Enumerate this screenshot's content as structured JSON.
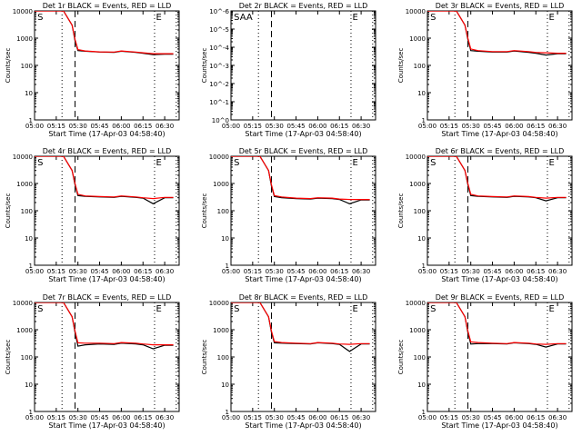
{
  "figure": {
    "xlabel": "Start Time (17-Apr-03 04:58:40)",
    "ylabel": "Counts/sec"
  },
  "chart_data": [
    {
      "type": "line",
      "title": "Det 1r BLACK = Events, RED = LLD",
      "xlabel": "Start Time (17-Apr-03 04:58:40)",
      "ylabel": "Counts/sec",
      "x_ticks": [
        "05:00",
        "05:15",
        "05:30",
        "05:45",
        "06:00",
        "06:15",
        "06:30"
      ],
      "y_scale": "log",
      "ylim": [
        1,
        10000
      ],
      "y_ticks": [
        "1",
        "10",
        "100",
        "1000",
        "10000"
      ],
      "xlim": [
        "05:00",
        "06:40"
      ],
      "dotted_markers": [
        "05:19",
        "06:23",
        "06:38"
      ],
      "dashed_markers": [
        "05:28"
      ],
      "labels": [
        {
          "text": "S",
          "time": "05:02"
        },
        {
          "text": "E",
          "time": "06:24"
        }
      ],
      "series": [
        {
          "name": "BLACK",
          "color": "#000000",
          "x": [
            "05:00",
            "05:20",
            "05:26",
            "05:28",
            "05:30",
            "05:35",
            "05:45",
            "05:55",
            "06:00",
            "06:10",
            "06:15",
            "06:22",
            "06:30",
            "06:36"
          ],
          "y": [
            10000,
            10000,
            3000,
            800,
            350,
            330,
            310,
            300,
            330,
            300,
            280,
            250,
            260,
            260
          ]
        },
        {
          "name": "RED",
          "color": "#ff0000",
          "x": [
            "05:00",
            "05:20",
            "05:26",
            "05:28",
            "05:30",
            "05:35",
            "05:45",
            "05:55",
            "06:00",
            "06:10",
            "06:15",
            "06:22",
            "06:30",
            "06:36"
          ],
          "y": [
            10000,
            10000,
            3000,
            900,
            380,
            340,
            315,
            310,
            340,
            310,
            290,
            270,
            270,
            270
          ]
        }
      ]
    },
    {
      "type": "line",
      "title": "Det 2r BLACK = Events, RED = LLD",
      "xlabel": "Start Time (17-Apr-03 04:58:40)",
      "ylabel": "Counts/sec",
      "x_ticks": [
        "05:00",
        "05:15",
        "05:30",
        "05:45",
        "06:00",
        "06:15",
        "06:30"
      ],
      "y_scale": "log",
      "ylim": [
        1,
        1e-06
      ],
      "y_ticks": [
        "10^0",
        "10^-1",
        "10^-2",
        "10^-3",
        "10^-4",
        "10^-5",
        "10^-6"
      ],
      "xlim": [
        "05:00",
        "06:40"
      ],
      "dotted_markers": [
        "05:19",
        "06:23",
        "06:38"
      ],
      "dashed_markers": [
        "05:28"
      ],
      "labels": [
        {
          "text": "SAA",
          "time": "05:02"
        },
        {
          "text": "E",
          "time": "06:24"
        }
      ],
      "series": []
    },
    {
      "type": "line",
      "title": "Det 3r BLACK = Events, RED = LLD",
      "xlabel": "Start Time (17-Apr-03 04:58:40)",
      "ylabel": "Counts/sec",
      "x_ticks": [
        "05:00",
        "05:15",
        "05:30",
        "05:45",
        "06:00",
        "06:15",
        "06:30"
      ],
      "y_scale": "log",
      "ylim": [
        1,
        10000
      ],
      "y_ticks": [
        "1",
        "10",
        "100",
        "1000",
        "10000"
      ],
      "xlim": [
        "05:00",
        "06:40"
      ],
      "dotted_markers": [
        "05:19",
        "06:23",
        "06:38"
      ],
      "dashed_markers": [
        "05:28"
      ],
      "labels": [
        {
          "text": "S",
          "time": "05:02"
        },
        {
          "text": "E",
          "time": "06:24"
        }
      ],
      "series": [
        {
          "name": "BLACK",
          "color": "#000000",
          "x": [
            "05:00",
            "05:20",
            "05:26",
            "05:28",
            "05:30",
            "05:35",
            "05:45",
            "05:55",
            "06:00",
            "06:10",
            "06:15",
            "06:22",
            "06:30",
            "06:36"
          ],
          "y": [
            10000,
            10000,
            3000,
            900,
            350,
            330,
            310,
            310,
            340,
            300,
            280,
            240,
            270,
            270
          ]
        },
        {
          "name": "RED",
          "color": "#ff0000",
          "x": [
            "05:00",
            "05:20",
            "05:26",
            "05:28",
            "05:30",
            "05:35",
            "05:45",
            "05:55",
            "06:00",
            "06:10",
            "06:15",
            "06:22",
            "06:30",
            "06:36"
          ],
          "y": [
            10000,
            10000,
            3000,
            1000,
            400,
            350,
            320,
            320,
            350,
            320,
            300,
            290,
            280,
            280
          ]
        }
      ]
    },
    {
      "type": "line",
      "title": "Det 4r BLACK = Events, RED = LLD",
      "xlabel": "Start Time (17-Apr-03 04:58:40)",
      "ylabel": "Counts/sec",
      "x_ticks": [
        "05:00",
        "05:15",
        "05:30",
        "05:45",
        "06:00",
        "06:15",
        "06:30"
      ],
      "y_scale": "log",
      "ylim": [
        1,
        10000
      ],
      "y_ticks": [
        "1",
        "10",
        "100",
        "1000",
        "10000"
      ],
      "xlim": [
        "05:00",
        "06:40"
      ],
      "dotted_markers": [
        "05:19",
        "06:23",
        "06:38"
      ],
      "dashed_markers": [
        "05:28"
      ],
      "labels": [
        {
          "text": "S",
          "time": "05:02"
        },
        {
          "text": "E",
          "time": "06:24"
        }
      ],
      "series": [
        {
          "name": "BLACK",
          "color": "#000000",
          "x": [
            "05:00",
            "05:20",
            "05:26",
            "05:28",
            "05:30",
            "05:35",
            "05:45",
            "05:55",
            "06:00",
            "06:10",
            "06:15",
            "06:22",
            "06:30",
            "06:36"
          ],
          "y": [
            10000,
            10000,
            3000,
            900,
            360,
            340,
            320,
            310,
            340,
            310,
            290,
            180,
            300,
            300
          ]
        },
        {
          "name": "RED",
          "color": "#ff0000",
          "x": [
            "05:00",
            "05:20",
            "05:26",
            "05:28",
            "05:30",
            "05:35",
            "05:45",
            "05:55",
            "06:00",
            "06:10",
            "06:15",
            "06:22",
            "06:30",
            "06:36"
          ],
          "y": [
            10000,
            10000,
            3000,
            1000,
            400,
            350,
            330,
            320,
            350,
            320,
            300,
            280,
            310,
            310
          ]
        }
      ]
    },
    {
      "type": "line",
      "title": "Det 5r BLACK = Events, RED = LLD",
      "xlabel": "Start Time (17-Apr-03 04:58:40)",
      "ylabel": "Counts/sec",
      "x_ticks": [
        "05:00",
        "05:15",
        "05:30",
        "05:45",
        "06:00",
        "06:15",
        "06:30"
      ],
      "y_scale": "log",
      "ylim": [
        1,
        10000
      ],
      "y_ticks": [
        "1",
        "10",
        "100",
        "1000",
        "10000"
      ],
      "xlim": [
        "05:00",
        "06:40"
      ],
      "dotted_markers": [
        "05:19",
        "06:23",
        "06:38"
      ],
      "dashed_markers": [
        "05:28"
      ],
      "labels": [
        {
          "text": "S",
          "time": "05:02"
        },
        {
          "text": "E",
          "time": "06:24"
        }
      ],
      "series": [
        {
          "name": "BLACK",
          "color": "#000000",
          "x": [
            "05:00",
            "05:20",
            "05:26",
            "05:28",
            "05:30",
            "05:35",
            "05:45",
            "05:55",
            "06:00",
            "06:10",
            "06:15",
            "06:22",
            "06:30",
            "06:36"
          ],
          "y": [
            10000,
            10000,
            3000,
            800,
            330,
            300,
            280,
            270,
            290,
            280,
            260,
            180,
            250,
            250
          ]
        },
        {
          "name": "RED",
          "color": "#ff0000",
          "x": [
            "05:00",
            "05:20",
            "05:26",
            "05:28",
            "05:30",
            "05:35",
            "05:45",
            "05:55",
            "06:00",
            "06:10",
            "06:15",
            "06:22",
            "06:30",
            "06:36"
          ],
          "y": [
            10000,
            10000,
            3000,
            900,
            360,
            320,
            290,
            280,
            300,
            290,
            270,
            260,
            260,
            260
          ]
        }
      ]
    },
    {
      "type": "line",
      "title": "Det 6r BLACK = Events, RED = LLD",
      "xlabel": "Start Time (17-Apr-03 04:58:40)",
      "ylabel": "Counts/sec",
      "x_ticks": [
        "05:00",
        "05:15",
        "05:30",
        "05:45",
        "06:00",
        "06:15",
        "06:30"
      ],
      "y_scale": "log",
      "ylim": [
        1,
        10000
      ],
      "y_ticks": [
        "1",
        "10",
        "100",
        "1000",
        "10000"
      ],
      "xlim": [
        "05:00",
        "06:40"
      ],
      "dotted_markers": [
        "05:19",
        "06:23",
        "06:38"
      ],
      "dashed_markers": [
        "05:28"
      ],
      "labels": [
        {
          "text": "S",
          "time": "05:02"
        },
        {
          "text": "E",
          "time": "06:24"
        }
      ],
      "series": [
        {
          "name": "BLACK",
          "color": "#000000",
          "x": [
            "05:00",
            "05:20",
            "05:26",
            "05:28",
            "05:30",
            "05:35",
            "05:45",
            "05:55",
            "06:00",
            "06:10",
            "06:15",
            "06:22",
            "06:30",
            "06:36"
          ],
          "y": [
            10000,
            10000,
            3000,
            900,
            360,
            340,
            320,
            310,
            340,
            320,
            300,
            230,
            300,
            300
          ]
        },
        {
          "name": "RED",
          "color": "#ff0000",
          "x": [
            "05:00",
            "05:20",
            "05:26",
            "05:28",
            "05:30",
            "05:35",
            "05:45",
            "05:55",
            "06:00",
            "06:10",
            "06:15",
            "06:22",
            "06:30",
            "06:36"
          ],
          "y": [
            10000,
            10000,
            3000,
            1000,
            400,
            350,
            330,
            320,
            350,
            330,
            310,
            290,
            310,
            310
          ]
        }
      ]
    },
    {
      "type": "line",
      "title": "Det 7r BLACK = Events, RED = LLD",
      "xlabel": "Start Time (17-Apr-03 04:58:40)",
      "ylabel": "Counts/sec",
      "x_ticks": [
        "05:00",
        "05:15",
        "05:30",
        "05:45",
        "06:00",
        "06:15",
        "06:30"
      ],
      "y_scale": "log",
      "ylim": [
        1,
        10000
      ],
      "y_ticks": [
        "1",
        "10",
        "100",
        "1000",
        "10000"
      ],
      "xlim": [
        "05:00",
        "06:40"
      ],
      "dotted_markers": [
        "05:19",
        "06:23",
        "06:38"
      ],
      "dashed_markers": [
        "05:28"
      ],
      "labels": [
        {
          "text": "S",
          "time": "05:02"
        },
        {
          "text": "E",
          "time": "06:24"
        }
      ],
      "series": [
        {
          "name": "BLACK",
          "color": "#000000",
          "x": [
            "05:00",
            "05:20",
            "05:26",
            "05:28",
            "05:30",
            "05:35",
            "05:45",
            "05:55",
            "06:00",
            "06:10",
            "06:15",
            "06:22",
            "06:30",
            "06:36"
          ],
          "y": [
            10000,
            10000,
            3000,
            800,
            250,
            280,
            300,
            290,
            320,
            300,
            280,
            200,
            270,
            270
          ]
        },
        {
          "name": "RED",
          "color": "#ff0000",
          "x": [
            "05:00",
            "05:20",
            "05:26",
            "05:28",
            "05:30",
            "05:35",
            "05:45",
            "05:55",
            "06:00",
            "06:10",
            "06:15",
            "06:22",
            "06:30",
            "06:36"
          ],
          "y": [
            10000,
            10000,
            3000,
            900,
            330,
            320,
            320,
            310,
            340,
            320,
            300,
            280,
            280,
            280
          ]
        }
      ]
    },
    {
      "type": "line",
      "title": "Det 8r BLACK = Events, RED = LLD",
      "xlabel": "Start Time (17-Apr-03 04:58:40)",
      "ylabel": "Counts/sec",
      "x_ticks": [
        "05:00",
        "05:15",
        "05:30",
        "05:45",
        "06:00",
        "06:15",
        "06:30"
      ],
      "y_scale": "log",
      "ylim": [
        1,
        10000
      ],
      "y_ticks": [
        "1",
        "10",
        "100",
        "1000",
        "10000"
      ],
      "xlim": [
        "05:00",
        "06:40"
      ],
      "dotted_markers": [
        "05:19",
        "06:23",
        "06:38"
      ],
      "dashed_markers": [
        "05:28"
      ],
      "labels": [
        {
          "text": "S",
          "time": "05:02"
        },
        {
          "text": "E",
          "time": "06:24"
        }
      ],
      "series": [
        {
          "name": "BLACK",
          "color": "#000000",
          "x": [
            "05:00",
            "05:20",
            "05:26",
            "05:28",
            "05:30",
            "05:35",
            "05:45",
            "05:55",
            "06:00",
            "06:10",
            "06:15",
            "06:22",
            "06:30",
            "06:36"
          ],
          "y": [
            10000,
            10000,
            3000,
            800,
            330,
            320,
            310,
            300,
            330,
            310,
            290,
            160,
            300,
            300
          ]
        },
        {
          "name": "RED",
          "color": "#ff0000",
          "x": [
            "05:00",
            "05:20",
            "05:26",
            "05:28",
            "05:30",
            "05:35",
            "05:45",
            "05:55",
            "06:00",
            "06:10",
            "06:15",
            "06:22",
            "06:30",
            "06:36"
          ],
          "y": [
            10000,
            10000,
            3000,
            900,
            370,
            340,
            320,
            310,
            340,
            320,
            300,
            290,
            310,
            310
          ]
        }
      ]
    },
    {
      "type": "line",
      "title": "Det 9r BLACK = Events, RED = LLD",
      "xlabel": "Start Time (17-Apr-03 04:58:40)",
      "ylabel": "Counts/sec",
      "x_ticks": [
        "05:00",
        "05:15",
        "05:30",
        "05:45",
        "06:00",
        "06:15",
        "06:30"
      ],
      "y_scale": "log",
      "ylim": [
        1,
        10000
      ],
      "y_ticks": [
        "1",
        "10",
        "100",
        "1000",
        "10000"
      ],
      "xlim": [
        "05:00",
        "06:40"
      ],
      "dotted_markers": [
        "05:19",
        "06:23",
        "06:38"
      ],
      "dashed_markers": [
        "05:28"
      ],
      "labels": [
        {
          "text": "S",
          "time": "05:02"
        },
        {
          "text": "E",
          "time": "06:24"
        }
      ],
      "series": [
        {
          "name": "BLACK",
          "color": "#000000",
          "x": [
            "05:00",
            "05:20",
            "05:26",
            "05:28",
            "05:30",
            "05:35",
            "05:45",
            "05:55",
            "06:00",
            "06:10",
            "06:15",
            "06:22",
            "06:30",
            "06:36"
          ],
          "y": [
            10000,
            10000,
            3000,
            800,
            300,
            310,
            310,
            300,
            330,
            310,
            290,
            230,
            300,
            300
          ]
        },
        {
          "name": "RED",
          "color": "#ff0000",
          "x": [
            "05:00",
            "05:20",
            "05:26",
            "05:28",
            "05:30",
            "05:35",
            "05:45",
            "05:55",
            "06:00",
            "06:10",
            "06:15",
            "06:22",
            "06:30",
            "06:36"
          ],
          "y": [
            10000,
            10000,
            3000,
            900,
            360,
            340,
            320,
            310,
            340,
            320,
            300,
            290,
            310,
            310
          ]
        }
      ]
    }
  ]
}
